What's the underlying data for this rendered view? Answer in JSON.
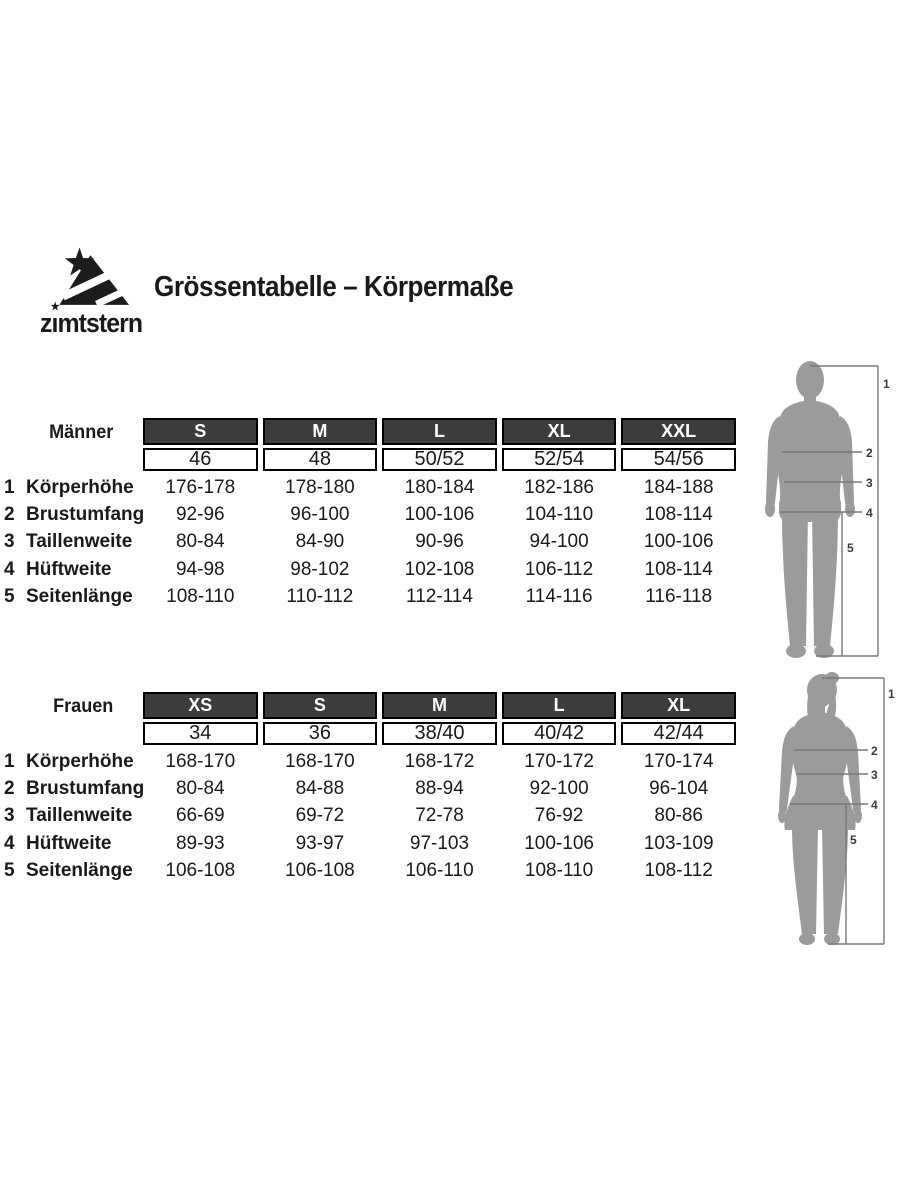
{
  "brand": {
    "wordmark": "zimtstern",
    "wordmark_pre": "z",
    "wordmark_i": "ı",
    "wordmark_post": "mtstern",
    "star_glyph": "★",
    "logo_icon": "star-mountain-logo"
  },
  "title": "Grössentabelle – Körpermaße",
  "tables": [
    {
      "group_label": "Männer",
      "sizes": [
        "S",
        "M",
        "L",
        "XL",
        "XXL"
      ],
      "size_numbers": [
        "46",
        "48",
        "50/52",
        "52/54",
        "54/56"
      ],
      "rows": [
        {
          "num": "1",
          "label": "Körperhöhe",
          "values": [
            "176-178",
            "178-180",
            "180-184",
            "182-186",
            "184-188"
          ]
        },
        {
          "num": "2",
          "label": "Brustumfang",
          "values": [
            "92-96",
            "96-100",
            "100-106",
            "104-110",
            "108-114"
          ]
        },
        {
          "num": "3",
          "label": "Taillenweite",
          "values": [
            "80-84",
            "84-90",
            "90-96",
            "94-100",
            "100-106"
          ]
        },
        {
          "num": "4",
          "label": "Hüftweite",
          "values": [
            "94-98",
            "98-102",
            "102-108",
            "106-112",
            "108-114"
          ]
        },
        {
          "num": "5",
          "label": "Seitenlänge",
          "values": [
            "108-110",
            "110-112",
            "112-114",
            "114-116",
            "116-118"
          ]
        }
      ],
      "figure": "male-silhouette",
      "figure_markers": [
        "1",
        "2",
        "3",
        "4",
        "5"
      ]
    },
    {
      "group_label": "Frauen",
      "sizes": [
        "XS",
        "S",
        "M",
        "L",
        "XL"
      ],
      "size_numbers": [
        "34",
        "36",
        "38/40",
        "40/42",
        "42/44"
      ],
      "rows": [
        {
          "num": "1",
          "label": "Körperhöhe",
          "values": [
            "168-170",
            "168-170",
            "168-172",
            "170-172",
            "170-174"
          ]
        },
        {
          "num": "2",
          "label": "Brustumfang",
          "values": [
            "80-84",
            "84-88",
            "88-94",
            "92-100",
            "96-104"
          ]
        },
        {
          "num": "3",
          "label": "Taillenweite",
          "values": [
            "66-69",
            "69-72",
            "72-78",
            "76-92",
            "80-86"
          ]
        },
        {
          "num": "4",
          "label": "Hüftweite",
          "values": [
            "89-93",
            "93-97",
            "97-103",
            "100-106",
            "103-109"
          ]
        },
        {
          "num": "5",
          "label": "Seitenlänge",
          "values": [
            "106-108",
            "106-108",
            "106-110",
            "108-110",
            "108-112"
          ]
        }
      ],
      "figure": "female-silhouette",
      "figure_markers": [
        "1",
        "2",
        "3",
        "4",
        "5"
      ]
    }
  ],
  "colors": {
    "header_bg": "#3c3c3c",
    "header_text": "#ffffff",
    "table_border": "#000000",
    "silhouette": "#9b9b9b",
    "measure_line": "#787878",
    "text": "#1a1a1a",
    "background": "#ffffff"
  }
}
